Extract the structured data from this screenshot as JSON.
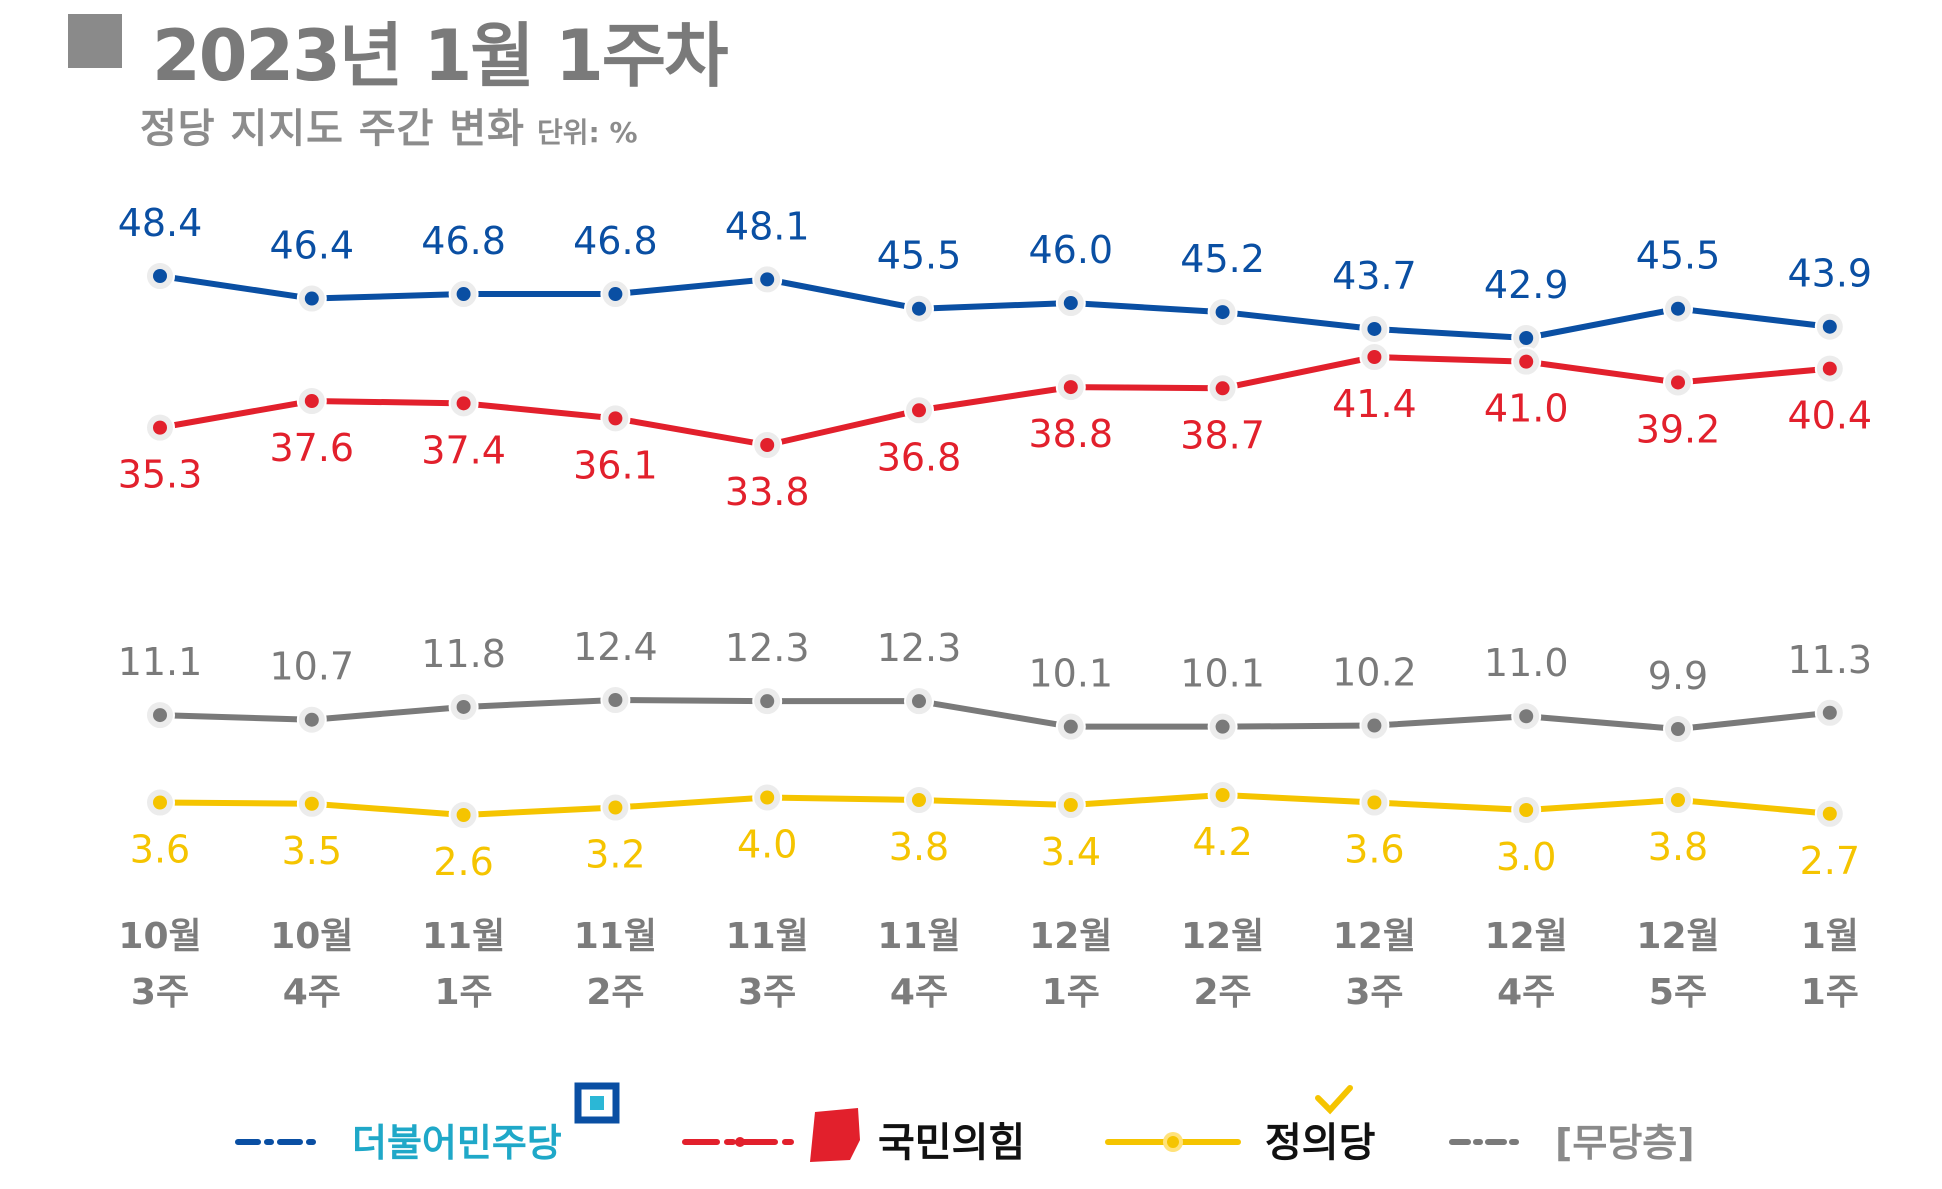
{
  "header": {
    "title": "2023년 1월 1주차",
    "subtitle": "정당 지지도 주간 변화",
    "unit": "단위: %"
  },
  "colors": {
    "democratic": "#0a4fa3",
    "ppp": "#e2202c",
    "justice": "#f5c400",
    "none": "#7a7a7a"
  },
  "chart_data": {
    "type": "line",
    "title": "정당 지지도 주간 변화",
    "unit": "%",
    "categories": [
      [
        "10월",
        "3주"
      ],
      [
        "10월",
        "4주"
      ],
      [
        "11월",
        "1주"
      ],
      [
        "11월",
        "2주"
      ],
      [
        "11월",
        "3주"
      ],
      [
        "11월",
        "4주"
      ],
      [
        "12월",
        "1주"
      ],
      [
        "12월",
        "2주"
      ],
      [
        "12월",
        "3주"
      ],
      [
        "12월",
        "4주"
      ],
      [
        "12월",
        "5주"
      ],
      [
        "1월",
        "1주"
      ]
    ],
    "series": [
      {
        "key": "democratic",
        "name": "더불어민주당",
        "values": [
          48.4,
          46.4,
          46.8,
          46.8,
          48.1,
          45.5,
          46.0,
          45.2,
          43.7,
          42.9,
          45.5,
          43.9
        ],
        "label_position": "above"
      },
      {
        "key": "ppp",
        "name": "국민의힘",
        "values": [
          35.3,
          37.6,
          37.4,
          36.1,
          33.8,
          36.8,
          38.8,
          38.7,
          41.4,
          41.0,
          39.2,
          40.4
        ],
        "label_position": "below"
      },
      {
        "key": "none",
        "name": "[무당층]",
        "values": [
          11.1,
          10.7,
          11.8,
          12.4,
          12.3,
          12.3,
          10.1,
          10.1,
          10.2,
          11.0,
          9.9,
          11.3
        ],
        "label_position": "above"
      },
      {
        "key": "justice",
        "name": "정의당",
        "values": [
          3.6,
          3.5,
          2.6,
          3.2,
          4.0,
          3.8,
          3.4,
          4.2,
          3.6,
          3.0,
          3.8,
          2.7
        ],
        "label_position": "below"
      }
    ],
    "legend": [
      {
        "key": "democratic",
        "label": "더불어민주당"
      },
      {
        "key": "ppp",
        "label": "국민의힘"
      },
      {
        "key": "justice",
        "label": "정의당"
      },
      {
        "key": "none",
        "label": "[무당층]"
      }
    ],
    "legend_placement": "bottom",
    "grid": false
  }
}
